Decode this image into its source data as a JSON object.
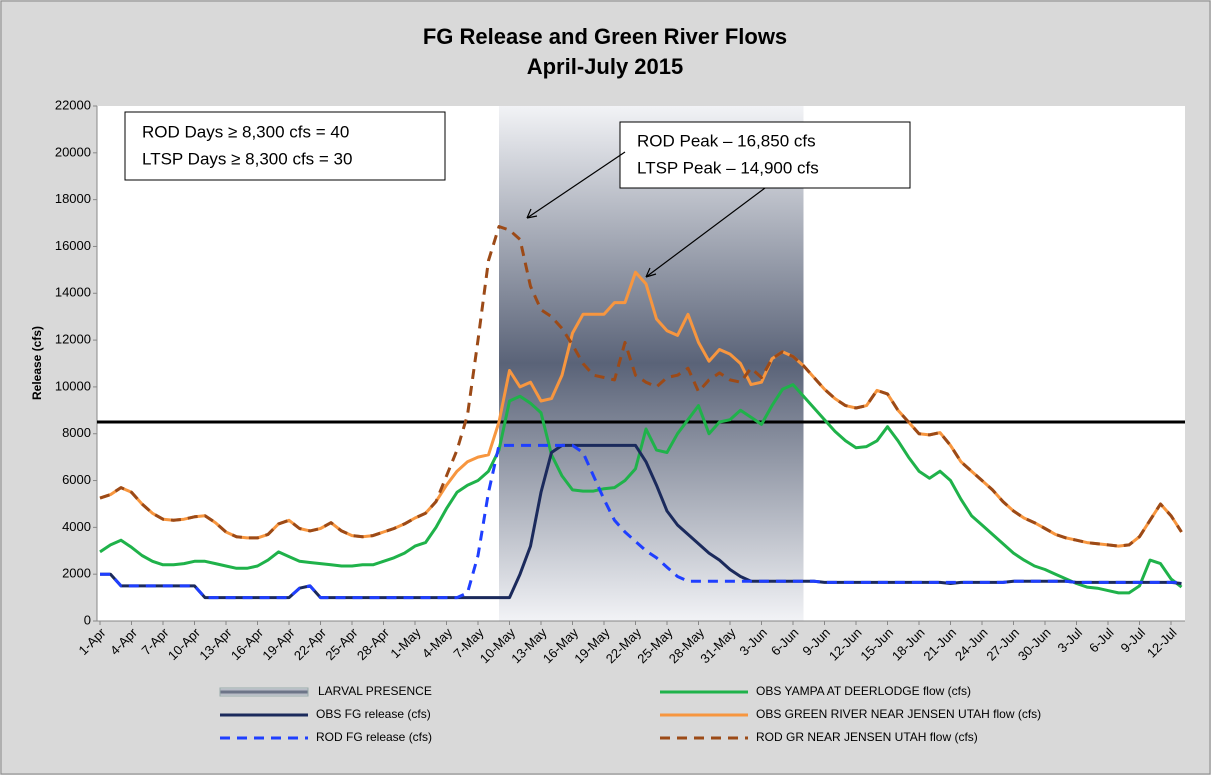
{
  "chart_data": {
    "type": "line",
    "title": "FG Release and Green River Flows",
    "subtitle": "April-July 2015",
    "y_label": "Release (cfs)",
    "ylim": [
      0,
      22000
    ],
    "yticks": [
      0,
      2000,
      4000,
      6000,
      8000,
      10000,
      12000,
      14000,
      16000,
      18000,
      20000,
      22000
    ],
    "categories": [
      "1-Apr",
      null,
      null,
      "4-Apr",
      null,
      null,
      "7-Apr",
      null,
      null,
      "10-Apr",
      null,
      null,
      "13-Apr",
      null,
      null,
      "16-Apr",
      null,
      null,
      "19-Apr",
      null,
      null,
      "22-Apr",
      null,
      null,
      "25-Apr",
      null,
      null,
      "28-Apr",
      null,
      null,
      "1-May",
      null,
      null,
      "4-May",
      null,
      null,
      "7-May",
      null,
      null,
      "10-May",
      null,
      null,
      "13-May",
      null,
      null,
      "16-May",
      null,
      null,
      "19-May",
      null,
      null,
      "22-May",
      null,
      null,
      "25-May",
      null,
      null,
      "28-May",
      null,
      null,
      "31-May",
      null,
      null,
      "3-Jun",
      null,
      null,
      "6-Jun",
      null,
      null,
      "9-Jun",
      null,
      null,
      "12-Jun",
      null,
      null,
      "15-Jun",
      null,
      null,
      "18-Jun",
      null,
      null,
      "21-Jun",
      null,
      null,
      "24-Jun",
      null,
      null,
      "27-Jun",
      null,
      null,
      "30-Jun",
      null,
      null,
      "3-Jul",
      null,
      null,
      "6-Jul",
      null,
      null,
      "9-Jul",
      null,
      null,
      "12-Jul",
      null
    ],
    "band": {
      "name": "LARVAL PRESENCE",
      "start": 38,
      "end": 67,
      "color": "#5a6378"
    },
    "reference_line": {
      "value": 8500,
      "color": "#000000"
    },
    "annotations": [
      "ROD Days ≥ 8,300 cfs = 40",
      "LTSP Days ≥ 8,300 cfs = 30",
      "ROD Peak – 16,850 cfs",
      "LTSP Peak – 14,900 cfs"
    ],
    "series": [
      {
        "name": "OBS FG release (cfs)",
        "color": "#1b2a5c",
        "dash": false,
        "values": [
          2000,
          2000,
          1500,
          1500,
          1500,
          1500,
          1500,
          1500,
          1500,
          1500,
          1000,
          1000,
          1000,
          1000,
          1000,
          1000,
          1000,
          1000,
          1000,
          1400,
          1500,
          1000,
          1000,
          1000,
          1000,
          1000,
          1000,
          1000,
          1000,
          1000,
          1000,
          1000,
          1000,
          1000,
          1000,
          1000,
          1000,
          1000,
          1000,
          1000,
          2000,
          3200,
          5500,
          7200,
          7500,
          7500,
          7500,
          7500,
          7500,
          7500,
          7500,
          7500,
          6800,
          5800,
          4700,
          4100,
          3700,
          3300,
          2900,
          2600,
          2200,
          1900,
          1700,
          1700,
          1700,
          1700,
          1700,
          1700,
          1700,
          1650,
          1650,
          1650,
          1650,
          1650,
          1650,
          1650,
          1650,
          1650,
          1650,
          1650,
          1650,
          1600,
          1650,
          1650,
          1650,
          1650,
          1650,
          1700,
          1700,
          1700,
          1700,
          1700,
          1700,
          1650,
          1650,
          1650,
          1650,
          1650,
          1650,
          1650,
          1650,
          1650,
          1650,
          1600
        ]
      },
      {
        "name": "ROD FG release (cfs)",
        "color": "#1f3fff",
        "dash": true,
        "values": [
          2000,
          2000,
          1500,
          1500,
          1500,
          1500,
          1500,
          1500,
          1500,
          1500,
          1000,
          1000,
          1000,
          1000,
          1000,
          1000,
          1000,
          1000,
          1000,
          1400,
          1500,
          1000,
          1000,
          1000,
          1000,
          1000,
          1000,
          1000,
          1000,
          1000,
          1000,
          1000,
          1000,
          1000,
          1000,
          1200,
          2800,
          5500,
          7500,
          7500,
          7500,
          7500,
          7500,
          7500,
          7500,
          7500,
          7200,
          6200,
          5200,
          4300,
          3800,
          3400,
          3000,
          2700,
          2300,
          1900,
          1700,
          1700,
          1700,
          1700,
          1700,
          1700,
          1700,
          1700,
          1700,
          1700,
          1700,
          1700,
          1700,
          1650,
          1650,
          1650,
          1650,
          1650,
          1650,
          1650,
          1650,
          1650,
          1650,
          1650,
          1650,
          1650,
          1650,
          1650,
          1650,
          1650,
          1650,
          1700,
          1700,
          1700,
          1700,
          1700,
          1700,
          1650,
          1650,
          1650,
          1650,
          1650,
          1650,
          1650,
          1650,
          1650,
          1650,
          1650
        ]
      },
      {
        "name": "OBS YAMPA AT DEERLODGE flow (cfs)",
        "color": "#1fb24a",
        "dash": false,
        "values": [
          2950,
          3250,
          3450,
          3150,
          2800,
          2550,
          2400,
          2400,
          2450,
          2550,
          2550,
          2450,
          2350,
          2250,
          2250,
          2350,
          2600,
          2950,
          2750,
          2550,
          2500,
          2450,
          2400,
          2350,
          2350,
          2400,
          2400,
          2550,
          2700,
          2900,
          3200,
          3350,
          4000,
          4800,
          5500,
          5800,
          6000,
          6400,
          7300,
          9400,
          9600,
          9300,
          8900,
          7100,
          6200,
          5600,
          5550,
          5550,
          5650,
          5700,
          6000,
          6500,
          8200,
          7300,
          7200,
          8000,
          8600,
          9200,
          8000,
          8500,
          8600,
          9000,
          8700,
          8400,
          9200,
          9900,
          10100,
          9600,
          9100,
          8600,
          8100,
          7700,
          7400,
          7450,
          7700,
          8300,
          7700,
          7000,
          6400,
          6100,
          6400,
          6000,
          5200,
          4500,
          4100,
          3700,
          3300,
          2900,
          2600,
          2350,
          2200,
          2000,
          1800,
          1600,
          1450,
          1400,
          1300,
          1200,
          1200,
          1500,
          2600,
          2450,
          1800,
          1450
        ]
      },
      {
        "name": "OBS GREEN RIVER NEAR JENSEN  UTAH flow (cfs)",
        "color": "#f7963f",
        "dash": false,
        "values": [
          5250,
          5400,
          5700,
          5500,
          5000,
          4600,
          4350,
          4300,
          4350,
          4450,
          4500,
          4200,
          3800,
          3600,
          3550,
          3550,
          3700,
          4150,
          4300,
          3950,
          3850,
          3950,
          4200,
          3850,
          3650,
          3600,
          3650,
          3800,
          3950,
          4150,
          4400,
          4600,
          5100,
          5800,
          6400,
          6800,
          7000,
          7100,
          8500,
          10700,
          10000,
          10200,
          9400,
          9500,
          10500,
          12300,
          13100,
          13100,
          13100,
          13600,
          13600,
          14900,
          14400,
          12900,
          12400,
          12200,
          13100,
          11900,
          11100,
          11600,
          11400,
          11000,
          10100,
          10200,
          11200,
          11500,
          11300,
          10900,
          10400,
          9900,
          9500,
          9200,
          9100,
          9200,
          9850,
          9700,
          9000,
          8500,
          8000,
          7950,
          8050,
          7500,
          6800,
          6400,
          6000,
          5600,
          5100,
          4700,
          4400,
          4200,
          3950,
          3700,
          3550,
          3450,
          3350,
          3300,
          3250,
          3200,
          3250,
          3600,
          4300,
          5000,
          4500,
          3800
        ]
      },
      {
        "name": "ROD GR NEAR JENSEN UTAH flow (cfs)",
        "color": "#9c4a17",
        "dash": true,
        "values": [
          5250,
          5400,
          5700,
          5500,
          5000,
          4600,
          4350,
          4300,
          4350,
          4450,
          4500,
          4200,
          3800,
          3600,
          3550,
          3550,
          3700,
          4150,
          4300,
          3950,
          3850,
          3950,
          4200,
          3850,
          3650,
          3600,
          3650,
          3800,
          3950,
          4150,
          4400,
          4600,
          5100,
          6200,
          7300,
          8800,
          12000,
          15400,
          16850,
          16700,
          16300,
          14300,
          13300,
          13000,
          12500,
          11800,
          11000,
          10500,
          10400,
          10300,
          11900,
          10500,
          10200,
          10000,
          10400,
          10500,
          10800,
          9800,
          10300,
          10600,
          10300,
          10200,
          10800,
          10400,
          11200,
          11500,
          11300,
          10900,
          10400,
          9900,
          9500,
          9200,
          9100,
          9200,
          9850,
          9700,
          9000,
          8500,
          8000,
          7950,
          8050,
          7500,
          6800,
          6400,
          6000,
          5600,
          5100,
          4700,
          4400,
          4200,
          3950,
          3700,
          3550,
          3450,
          3350,
          3300,
          3250,
          3200,
          3250,
          3600,
          4300,
          5000,
          4500,
          3800
        ]
      }
    ]
  }
}
